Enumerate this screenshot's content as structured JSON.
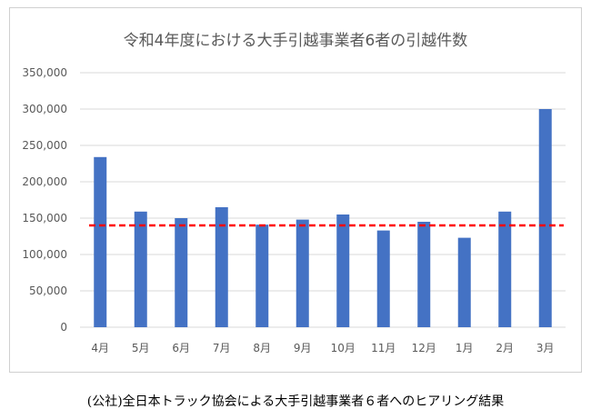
{
  "chart_data": {
    "type": "bar",
    "title": "令和4年度における大手引越事業者6者の引越件数",
    "caption": "(公社)全日本トラック協会による大手引越事業者６者へのヒアリング結果",
    "categories": [
      "4月",
      "5月",
      "6月",
      "7月",
      "8月",
      "9月",
      "10月",
      "11月",
      "12月",
      "1月",
      "2月",
      "3月"
    ],
    "values": [
      234000,
      159000,
      150000,
      165000,
      141000,
      148000,
      155000,
      133000,
      145000,
      123000,
      159000,
      300000
    ],
    "reference_line": {
      "value": 140000,
      "style": "dashed",
      "color": "#ff0000"
    },
    "ylim": [
      0,
      350000
    ],
    "yticks": [
      0,
      50000,
      100000,
      150000,
      200000,
      250000,
      300000,
      350000
    ],
    "ytick_labels": [
      "0",
      "50,000",
      "100,000",
      "150,000",
      "200,000",
      "250,000",
      "300,000",
      "350,000"
    ],
    "xlabel": "",
    "ylabel": "",
    "grid": true,
    "bar_color": "#4472c4"
  }
}
